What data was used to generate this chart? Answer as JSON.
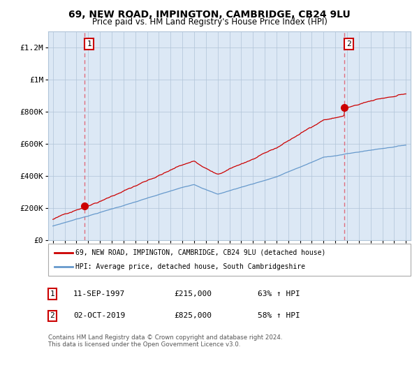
{
  "title": "69, NEW ROAD, IMPINGTON, CAMBRIDGE, CB24 9LU",
  "subtitle": "Price paid vs. HM Land Registry's House Price Index (HPI)",
  "title_fontsize": 10,
  "subtitle_fontsize": 8.5,
  "ylabel_ticks": [
    "£0",
    "£200K",
    "£400K",
    "£600K",
    "£800K",
    "£1M",
    "£1.2M"
  ],
  "ytick_values": [
    0,
    200000,
    400000,
    600000,
    800000,
    1000000,
    1200000
  ],
  "ylim": [
    0,
    1300000
  ],
  "x_start_year": 1995,
  "x_end_year": 2025,
  "marker1": {
    "date_num": 1997.7,
    "value": 215000,
    "label": "1",
    "date_str": "11-SEP-1997",
    "price": "£215,000",
    "hpi": "63% ↑ HPI"
  },
  "marker2": {
    "date_num": 2019.75,
    "value": 825000,
    "label": "2",
    "date_str": "02-OCT-2019",
    "price": "£825,000",
    "hpi": "58% ↑ HPI"
  },
  "red_line_color": "#cc0000",
  "blue_line_color": "#6699cc",
  "dashed_line_color": "#e06070",
  "chart_bg_color": "#dce8f5",
  "legend_label_red": "69, NEW ROAD, IMPINGTON, CAMBRIDGE, CB24 9LU (detached house)",
  "legend_label_blue": "HPI: Average price, detached house, South Cambridgeshire",
  "footer": "Contains HM Land Registry data © Crown copyright and database right 2024.\nThis data is licensed under the Open Government Licence v3.0.",
  "background_color": "#ffffff",
  "grid_color": "#b0c4d8"
}
